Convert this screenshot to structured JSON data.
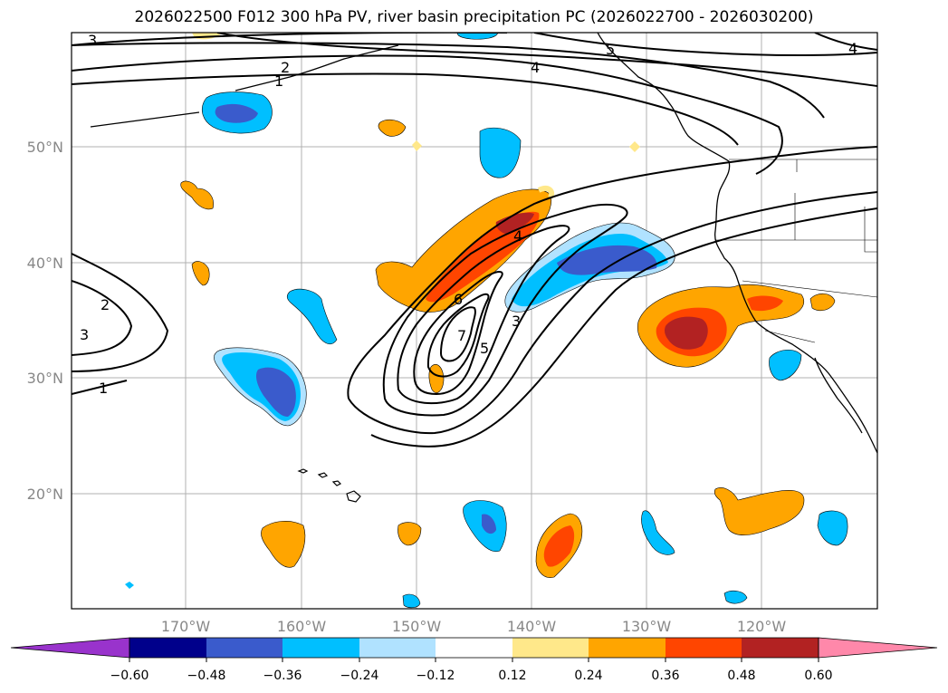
{
  "title": "2026022500 F012 300 hPa PV, river basin precipitation PC (2026022700 - 2026030200)",
  "map": {
    "lat_labels": [
      "50°N",
      "40°N",
      "30°N",
      "20°N"
    ],
    "lon_labels": [
      "170°W",
      "160°W",
      "150°W",
      "140°W",
      "130°W",
      "120°W"
    ],
    "contour_labels": [
      "3",
      "2",
      "1",
      "4",
      "5",
      "4",
      "2",
      "3",
      "1",
      "4",
      "6",
      "7",
      "5",
      "3"
    ]
  },
  "colorbar": {
    "ticks": [
      "−0.60",
      "−0.48",
      "−0.36",
      "−0.24",
      "−0.12",
      "0.12",
      "0.24",
      "0.36",
      "0.48",
      "0.60"
    ],
    "colors": {
      "under": "#9933cc",
      "b1": "#00008b",
      "b2": "#3a5bcc",
      "b3": "#00bfff",
      "b4": "#b0e2ff",
      "mid": "#ffffff",
      "p1": "#ffe88a",
      "p2": "#ffa500",
      "p3": "#ff4500",
      "p4": "#b22222",
      "over": "#ff88aa"
    }
  }
}
